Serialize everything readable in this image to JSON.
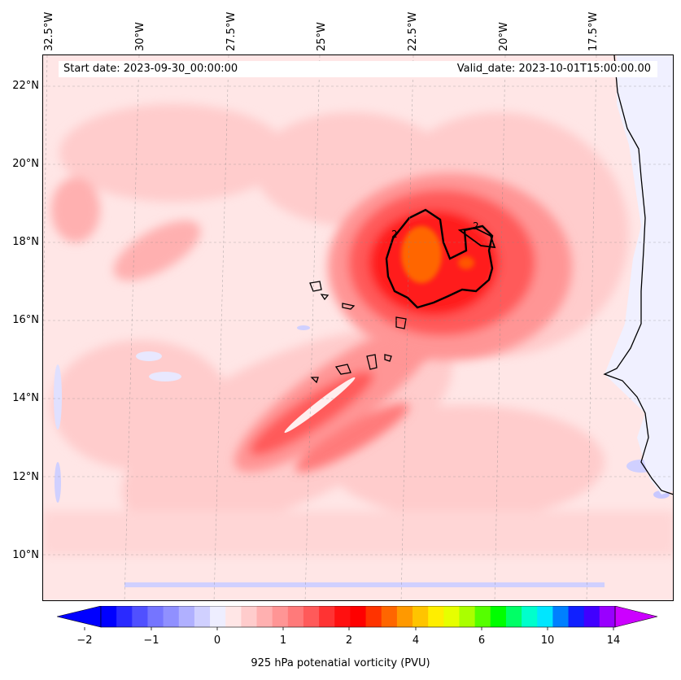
{
  "header": {
    "start_date": "Start date: 2023-09-30_00:00:00",
    "valid_date": "Valid_date: 2023-10-01T15:00:00.00"
  },
  "axes": {
    "lon_labels": [
      "32.5°W",
      "30°W",
      "27.5°W",
      "25°W",
      "22.5°W",
      "20°W",
      "17.5°W"
    ],
    "lat_labels": [
      "22°N",
      "20°N",
      "18°N",
      "16°N",
      "14°N",
      "12°N",
      "10°N"
    ]
  },
  "colorbar": {
    "title": "925 hPa potenatial vorticity (PVU)",
    "tick_labels": [
      "−2",
      "−1",
      "0",
      "1",
      "2",
      "4",
      "6",
      "10",
      "14"
    ],
    "colors": [
      "#0000ff",
      "#2a2aff",
      "#5050ff",
      "#7575ff",
      "#9090ff",
      "#b0b0ff",
      "#d0d0ff",
      "#eeeeff",
      "#ffe6e6",
      "#ffcccc",
      "#ffb0b0",
      "#ff9595",
      "#ff7a7a",
      "#ff5a5a",
      "#ff3333",
      "#ff1010",
      "#ff0000",
      "#ff3300",
      "#ff6600",
      "#ff9900",
      "#ffc400",
      "#ffee00",
      "#e6ff00",
      "#aaff00",
      "#55ff00",
      "#00ff00",
      "#00ff66",
      "#00ffcc",
      "#00e6ff",
      "#0080ff",
      "#1020ff",
      "#4000ff",
      "#9900ff"
    ],
    "extend_min_color": "#0000ff",
    "extend_max_color": "#cc00ff"
  },
  "contour_label": "2"
}
